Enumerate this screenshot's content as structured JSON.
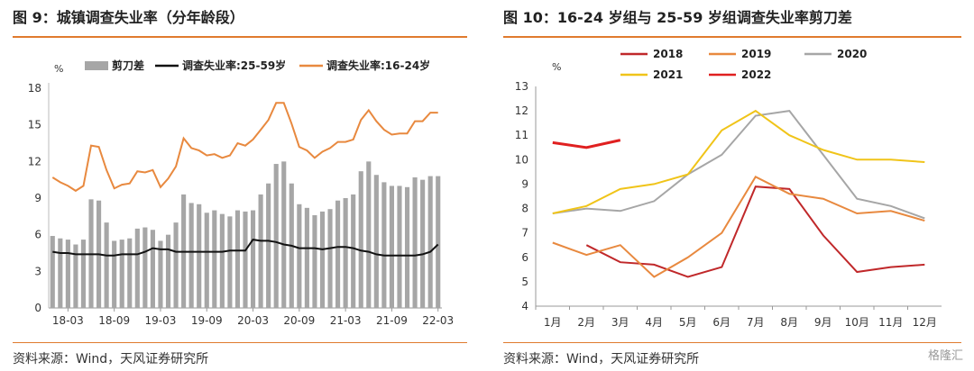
{
  "left": {
    "title": "图 9：城镇调查失业率（分年龄段）",
    "source": "资料来源：Wind，天风证券研究所",
    "chart_data": {
      "type": "bar+line",
      "ylabel": "%",
      "ylim": [
        0,
        18
      ],
      "yticks": [
        0,
        3,
        6,
        9,
        12,
        15,
        18
      ],
      "xtick_labels": [
        "18-03",
        "18-09",
        "19-03",
        "19-09",
        "20-03",
        "20-09",
        "21-03",
        "21-09",
        "22-03"
      ],
      "x": [
        "18-01",
        "18-02",
        "18-03",
        "18-04",
        "18-05",
        "18-06",
        "18-07",
        "18-08",
        "18-09",
        "18-10",
        "18-11",
        "18-12",
        "19-01",
        "19-02",
        "19-03",
        "19-04",
        "19-05",
        "19-06",
        "19-07",
        "19-08",
        "19-09",
        "19-10",
        "19-11",
        "19-12",
        "20-01",
        "20-02",
        "20-03",
        "20-04",
        "20-05",
        "20-06",
        "20-07",
        "20-08",
        "20-09",
        "20-10",
        "20-11",
        "20-12",
        "21-01",
        "21-02",
        "21-03",
        "21-04",
        "21-05",
        "21-06",
        "21-07",
        "21-08",
        "21-09",
        "21-10",
        "21-11",
        "21-12",
        "22-01",
        "22-02",
        "22-03"
      ],
      "series": [
        {
          "name": "剪刀差",
          "kind": "bar",
          "color": "#a6a6a6",
          "values": [
            5.9,
            5.7,
            5.6,
            5.2,
            5.6,
            8.9,
            8.8,
            7.0,
            5.5,
            5.6,
            5.7,
            6.5,
            6.6,
            6.4,
            5.5,
            6.0,
            7.0,
            9.3,
            8.6,
            8.5,
            7.8,
            8.0,
            7.7,
            7.5,
            8.0,
            7.9,
            8.0,
            9.3,
            10.2,
            11.8,
            12.0,
            10.2,
            8.5,
            8.2,
            7.6,
            7.9,
            8.1,
            8.8,
            9.0,
            9.3,
            11.2,
            12.0,
            10.9,
            10.3,
            10.0,
            10.0,
            9.9,
            10.7,
            10.5,
            10.8,
            10.8
          ]
        },
        {
          "name": "调查失业率:25-59岁",
          "kind": "line",
          "color": "#111111",
          "values": [
            4.6,
            4.5,
            4.5,
            4.4,
            4.4,
            4.4,
            4.4,
            4.3,
            4.3,
            4.4,
            4.4,
            4.4,
            4.6,
            4.9,
            4.8,
            4.8,
            4.6,
            4.6,
            4.6,
            4.6,
            4.6,
            4.6,
            4.6,
            4.7,
            4.7,
            4.7,
            5.6,
            5.5,
            5.5,
            5.4,
            5.2,
            5.1,
            4.9,
            4.9,
            4.9,
            4.8,
            4.9,
            5.0,
            5.0,
            4.9,
            4.7,
            4.6,
            4.4,
            4.3,
            4.3,
            4.3,
            4.3,
            4.3,
            4.4,
            4.6,
            5.2
          ]
        },
        {
          "name": "调查失业率:16-24岁",
          "kind": "line",
          "color": "#e8893f",
          "values": [
            10.7,
            10.3,
            10.0,
            9.6,
            10.0,
            13.3,
            13.2,
            11.3,
            9.8,
            10.1,
            10.2,
            11.2,
            11.1,
            11.3,
            9.9,
            10.6,
            11.6,
            13.9,
            13.1,
            12.9,
            12.5,
            12.6,
            12.3,
            12.5,
            13.5,
            13.3,
            13.8,
            14.6,
            15.4,
            16.8,
            16.8,
            15.1,
            13.2,
            12.9,
            12.3,
            12.8,
            13.1,
            13.6,
            13.6,
            13.8,
            15.4,
            16.2,
            15.3,
            14.6,
            14.2,
            14.3,
            14.3,
            15.3,
            15.3,
            16.0,
            16.0
          ]
        }
      ]
    }
  },
  "right": {
    "title": "图 10：16-24 岁组与 25-59 岁组调查失业率剪刀差",
    "source": "资料来源：Wind，天风证券研究所",
    "chart_data": {
      "type": "line",
      "ylabel": "%",
      "ylim": [
        4,
        13
      ],
      "yticks": [
        4,
        5,
        6,
        7,
        8,
        9,
        10,
        11,
        12,
        13
      ],
      "categories": [
        "1月",
        "2月",
        "3月",
        "4月",
        "5月",
        "6月",
        "7月",
        "8月",
        "9月",
        "10月",
        "11月",
        "12月"
      ],
      "series": [
        {
          "name": "2018",
          "color": "#c0282a",
          "values": [
            null,
            6.5,
            5.8,
            5.7,
            5.2,
            5.6,
            8.9,
            8.8,
            6.9,
            5.4,
            5.6,
            5.7
          ]
        },
        {
          "name": "2019",
          "color": "#e8893f",
          "values": [
            6.6,
            6.1,
            6.5,
            5.2,
            6.0,
            7.0,
            9.3,
            8.6,
            8.4,
            7.8,
            7.9,
            7.5
          ]
        },
        {
          "name": "2020",
          "color": "#a6a6a6",
          "values": [
            7.8,
            8.0,
            7.9,
            8.3,
            9.4,
            10.2,
            11.8,
            12.0,
            10.2,
            8.4,
            8.1,
            7.6
          ]
        },
        {
          "name": "2021",
          "color": "#f0c419",
          "values": [
            7.8,
            8.1,
            8.8,
            9.0,
            9.4,
            11.2,
            12.0,
            11.0,
            10.4,
            10.0,
            10.0,
            9.9
          ]
        },
        {
          "name": "2022",
          "color": "#e02020",
          "values": [
            10.7,
            10.5,
            10.8,
            null,
            null,
            null,
            null,
            null,
            null,
            null,
            null,
            null
          ]
        }
      ]
    }
  },
  "watermark": "格隆汇"
}
